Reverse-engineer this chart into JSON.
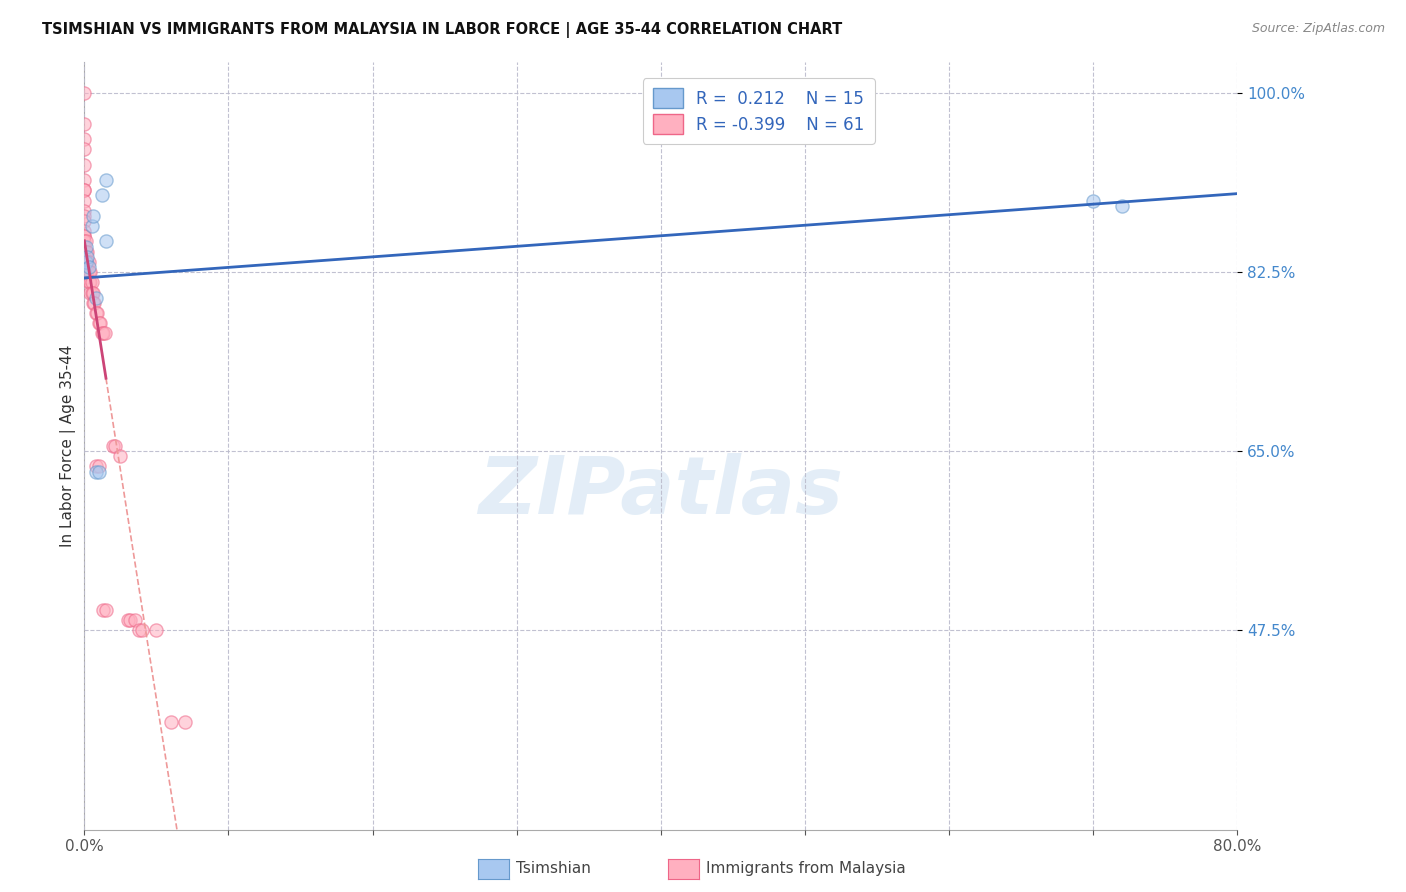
{
  "title": "TSIMSHIAN VS IMMIGRANTS FROM MALAYSIA IN LABOR FORCE | AGE 35-44 CORRELATION CHART",
  "source": "Source: ZipAtlas.com",
  "ylabel": "In Labor Force | Age 35-44",
  "watermark": "ZIPatlas",
  "tsimshian_R": 0.212,
  "tsimshian_N": 15,
  "malaysia_R": -0.399,
  "malaysia_N": 61,
  "tsimshian_x": [
    0.0,
    0.001,
    0.001,
    0.002,
    0.003,
    0.005,
    0.006,
    0.008,
    0.008,
    0.01,
    0.012,
    0.015,
    0.015,
    0.7,
    0.72
  ],
  "tsimshian_y": [
    0.825,
    0.85,
    0.835,
    0.84,
    0.83,
    0.87,
    0.88,
    0.8,
    0.63,
    0.63,
    0.9,
    0.915,
    0.855,
    0.895,
    0.89
  ],
  "malaysia_x": [
    0.0,
    0.0,
    0.0,
    0.0,
    0.0,
    0.0,
    0.0,
    0.0,
    0.0,
    0.0,
    0.0,
    0.0,
    0.0,
    0.0,
    0.0,
    0.0,
    0.0,
    0.0,
    0.0,
    0.001,
    0.001,
    0.001,
    0.001,
    0.001,
    0.001,
    0.002,
    0.002,
    0.002,
    0.003,
    0.003,
    0.003,
    0.004,
    0.004,
    0.004,
    0.005,
    0.005,
    0.006,
    0.006,
    0.007,
    0.008,
    0.008,
    0.009,
    0.01,
    0.01,
    0.011,
    0.012,
    0.013,
    0.013,
    0.014,
    0.015,
    0.02,
    0.021,
    0.025,
    0.03,
    0.032,
    0.035,
    0.038,
    0.04,
    0.05,
    0.06,
    0.07
  ],
  "malaysia_y": [
    1.0,
    0.97,
    0.955,
    0.945,
    0.93,
    0.915,
    0.905,
    0.905,
    0.895,
    0.885,
    0.88,
    0.875,
    0.865,
    0.86,
    0.86,
    0.855,
    0.85,
    0.845,
    0.84,
    0.855,
    0.845,
    0.835,
    0.83,
    0.825,
    0.82,
    0.845,
    0.835,
    0.825,
    0.835,
    0.825,
    0.815,
    0.825,
    0.815,
    0.805,
    0.815,
    0.805,
    0.805,
    0.795,
    0.795,
    0.785,
    0.635,
    0.785,
    0.775,
    0.635,
    0.775,
    0.765,
    0.765,
    0.495,
    0.765,
    0.495,
    0.655,
    0.655,
    0.645,
    0.485,
    0.485,
    0.485,
    0.475,
    0.475,
    0.475,
    0.385,
    0.385
  ],
  "tsimshian_color": "#A8C8F0",
  "tsimshian_edge": "#6699CC",
  "malaysia_color": "#FFB0C0",
  "malaysia_edge": "#EE6688",
  "blue_line_color": "#3366BB",
  "pink_line_color": "#CC4477",
  "dashed_line_color": "#EE9999",
  "xlim": [
    0.0,
    0.8
  ],
  "ylim": [
    0.28,
    1.03
  ],
  "yticks": [
    0.475,
    0.65,
    0.825,
    1.0
  ],
  "ytick_labels": [
    "47.5%",
    "65.0%",
    "82.5%",
    "100.0%"
  ],
  "legend_R1": "R =  0.212",
  "legend_N1": "N = 15",
  "legend_R2": "R = -0.399",
  "legend_N2": "N = 61",
  "marker_size": 90,
  "alpha": 0.55,
  "line_width": 2.0
}
